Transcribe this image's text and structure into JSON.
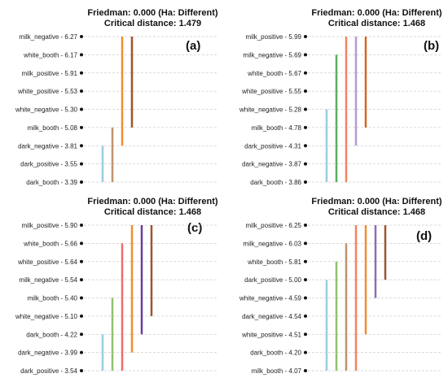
{
  "chart_data": [
    {
      "type": "critical-difference",
      "panel_label": "(a)",
      "title_line1": "Friedman: 0.000 (Ha: Different)",
      "title_line2": "Critical distance: 1.479",
      "items": [
        {
          "name": "milk_negative",
          "rank": "6.27"
        },
        {
          "name": "white_booth",
          "rank": "6.17"
        },
        {
          "name": "milk_positive",
          "rank": "5.91"
        },
        {
          "name": "white_positive",
          "rank": "5.53"
        },
        {
          "name": "white_negative",
          "rank": "5.30"
        },
        {
          "name": "milk_booth",
          "rank": "5.08"
        },
        {
          "name": "dark_negative",
          "rank": "3.81"
        },
        {
          "name": "dark_positive",
          "rank": "3.55"
        },
        {
          "name": "dark_booth",
          "rank": "3.39"
        }
      ],
      "groups": [
        {
          "color": "#9ecae1",
          "from": 6,
          "to": 8
        },
        {
          "color": "#c0926a",
          "from": 5,
          "to": 8
        },
        {
          "color": "#f28e2b",
          "from": 0,
          "to": 6
        },
        {
          "color": "#a0522d",
          "from": 0,
          "to": 5
        }
      ]
    },
    {
      "type": "critical-difference",
      "panel_label": "(b)",
      "title_line1": "Friedman: 0.000 (Ha: Different)",
      "title_line2": "Critical distance: 1.468",
      "items": [
        {
          "name": "milk_positive",
          "rank": "5.99"
        },
        {
          "name": "milk_negative",
          "rank": "5.69"
        },
        {
          "name": "white_booth",
          "rank": "5.67"
        },
        {
          "name": "white_positive",
          "rank": "5.55"
        },
        {
          "name": "white_negative",
          "rank": "5.28"
        },
        {
          "name": "milk_booth",
          "rank": "4.78"
        },
        {
          "name": "dark_positive",
          "rank": "4.31"
        },
        {
          "name": "dark_negative",
          "rank": "3.87"
        },
        {
          "name": "dark_booth",
          "rank": "3.86"
        }
      ],
      "groups": [
        {
          "color": "#9ecae1",
          "from": 4,
          "to": 8
        },
        {
          "color": "#5aae61",
          "from": 1,
          "to": 8
        },
        {
          "color": "#f4845f",
          "from": 0,
          "to": 8
        },
        {
          "color": "#b19cd9",
          "from": 0,
          "to": 6
        },
        {
          "color": "#d2691e",
          "from": 0,
          "to": 5
        }
      ]
    },
    {
      "type": "critical-difference",
      "panel_label": "(c)",
      "title_line1": "Friedman: 0.000 (Ha: Different)",
      "title_line2": "Critical distance: 1.468",
      "items": [
        {
          "name": "milk_positive",
          "rank": "5.90"
        },
        {
          "name": "white_booth",
          "rank": "5.66"
        },
        {
          "name": "white_positive",
          "rank": "5.64"
        },
        {
          "name": "milk_negative",
          "rank": "5.54"
        },
        {
          "name": "milk_booth",
          "rank": "5.40"
        },
        {
          "name": "white_negative",
          "rank": "5.10"
        },
        {
          "name": "dark_booth",
          "rank": "4.22"
        },
        {
          "name": "dark_negative",
          "rank": "3.99"
        },
        {
          "name": "dark_positive",
          "rank": "3.54"
        }
      ],
      "groups": [
        {
          "color": "#9ecae1",
          "from": 6,
          "to": 8
        },
        {
          "color": "#8fc26a",
          "from": 4,
          "to": 8
        },
        {
          "color": "#ef6c6c",
          "from": 1,
          "to": 8
        },
        {
          "color": "#f28e2b",
          "from": 0,
          "to": 7
        },
        {
          "color": "#6a3d9a",
          "from": 0,
          "to": 6
        },
        {
          "color": "#a0522d",
          "from": 0,
          "to": 5
        }
      ]
    },
    {
      "type": "critical-difference",
      "panel_label": "(d)",
      "title_line1": "Friedman: 0.000 (Ha: Different)",
      "title_line2": "Critical distance: 1.468",
      "items": [
        {
          "name": "milk_positive",
          "rank": "6.25"
        },
        {
          "name": "milk_negative",
          "rank": "6.03"
        },
        {
          "name": "white_booth",
          "rank": "5.81"
        },
        {
          "name": "dark_positive",
          "rank": "5.00"
        },
        {
          "name": "white_negative",
          "rank": "4.59"
        },
        {
          "name": "dark_negative",
          "rank": "4.54"
        },
        {
          "name": "white_positive",
          "rank": "4.51"
        },
        {
          "name": "dark_booth",
          "rank": "4.20"
        },
        {
          "name": "milk_booth",
          "rank": "4.07"
        }
      ],
      "groups": [
        {
          "color": "#9ecae1",
          "from": 3,
          "to": 8
        },
        {
          "color": "#8fc26a",
          "from": 2,
          "to": 8
        },
        {
          "color": "#c0926a",
          "from": 1,
          "to": 8
        },
        {
          "color": "#f4845f",
          "from": 0,
          "to": 8
        },
        {
          "color": "#f28e2b",
          "from": 0,
          "to": 6
        },
        {
          "color": "#8e6bb8",
          "from": 0,
          "to": 4
        },
        {
          "color": "#a0522d",
          "from": 0,
          "to": 3
        }
      ]
    }
  ]
}
